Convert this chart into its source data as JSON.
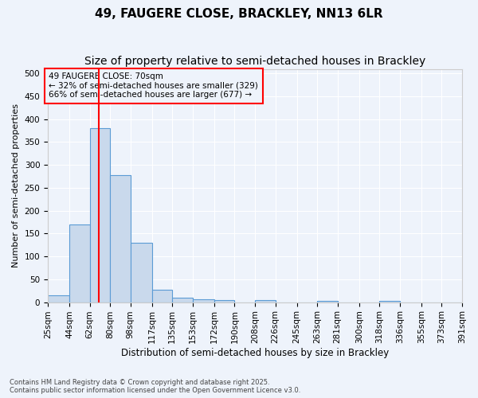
{
  "title": "49, FAUGERE CLOSE, BRACKLEY, NN13 6LR",
  "subtitle": "Size of property relative to semi-detached houses in Brackley",
  "xlabel": "Distribution of semi-detached houses by size in Brackley",
  "ylabel": "Number of semi-detached properties",
  "bar_color": "#c9d9ec",
  "bar_edge_color": "#5b9bd5",
  "red_line_x": 70,
  "annotation_text": "49 FAUGERE CLOSE: 70sqm\n← 32% of semi-detached houses are smaller (329)\n66% of semi-detached houses are larger (677) →",
  "footer_text": "Contains HM Land Registry data © Crown copyright and database right 2025.\nContains public sector information licensed under the Open Government Licence v3.0.",
  "bin_edges": [
    25,
    44,
    62,
    80,
    98,
    117,
    135,
    153,
    172,
    190,
    208,
    226,
    245,
    263,
    281,
    300,
    318,
    336,
    355,
    373,
    391
  ],
  "tick_labels": [
    "25sqm",
    "44sqm",
    "62sqm",
    "80sqm",
    "98sqm",
    "117sqm",
    "135sqm",
    "153sqm",
    "172sqm",
    "190sqm",
    "208sqm",
    "226sqm",
    "245sqm",
    "263sqm",
    "281sqm",
    "300sqm",
    "318sqm",
    "336sqm",
    "355sqm",
    "373sqm",
    "391sqm"
  ],
  "values": [
    15,
    170,
    380,
    278,
    130,
    28,
    9,
    7,
    5,
    0,
    5,
    0,
    0,
    3,
    0,
    0,
    2,
    0,
    0,
    0
  ],
  "ylim": [
    0,
    510
  ],
  "yticks": [
    0,
    50,
    100,
    150,
    200,
    250,
    300,
    350,
    400,
    450,
    500
  ],
  "background_color": "#eef3fb",
  "grid_color": "#ffffff",
  "title_fontsize": 11,
  "subtitle_fontsize": 10,
  "tick_fontsize": 7.5,
  "annotation_fontsize": 7.5,
  "ylabel_fontsize": 8,
  "xlabel_fontsize": 8.5,
  "footer_fontsize": 6
}
